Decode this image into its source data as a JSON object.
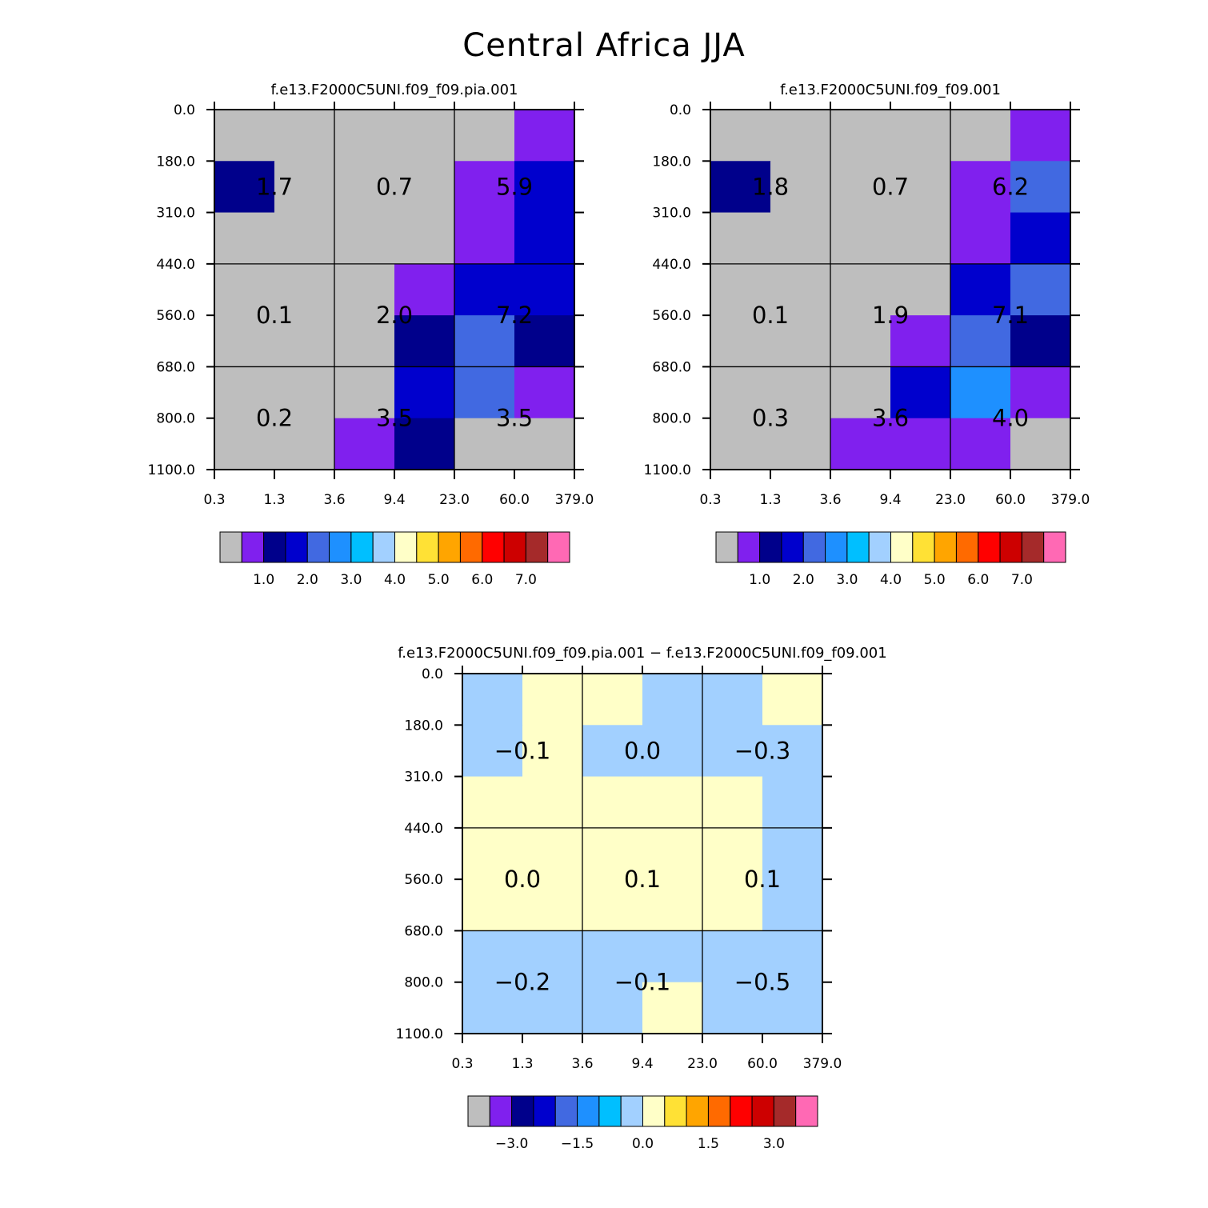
{
  "title": "Central Africa JJA",
  "colors": {
    "gray": "#bebebe",
    "blueviolet": "#8020ee",
    "navy": "#00008b",
    "mediumblue": "#0000cd",
    "royalblue": "#4169e1",
    "dodgerblue": "#1e90ff",
    "lightblue": "#a2d0ff",
    "lightyellow": "#ffffc8"
  },
  "chart_data": [
    {
      "type": "heatmap",
      "title": "f.e13.F2000C5UNI.f09_f09.pia.001",
      "x_ticks": [
        "0.3",
        "1.3",
        "3.6",
        "9.4",
        "23.0",
        "60.0",
        "379.0"
      ],
      "y_ticks": [
        "0.0",
        "180.0",
        "310.0",
        "440.0",
        "560.0",
        "680.0",
        "800.0",
        "1100.0"
      ],
      "cells": [
        [
          "gray",
          "gray",
          "gray",
          "gray",
          "gray",
          "blueviolet"
        ],
        [
          "navy",
          "gray",
          "gray",
          "gray",
          "blueviolet",
          "mediumblue"
        ],
        [
          "gray",
          "gray",
          "gray",
          "gray",
          "blueviolet",
          "mediumblue"
        ],
        [
          "gray",
          "gray",
          "gray",
          "blueviolet",
          "mediumblue",
          "mediumblue"
        ],
        [
          "gray",
          "gray",
          "gray",
          "navy",
          "royalblue",
          "navy"
        ],
        [
          "gray",
          "gray",
          "gray",
          "mediumblue",
          "royalblue",
          "blueviolet"
        ],
        [
          "gray",
          "gray",
          "blueviolet",
          "navy",
          "gray",
          "gray"
        ]
      ],
      "group_values": [
        [
          "1.7",
          "0.7",
          "5.9"
        ],
        [
          "0.1",
          "2.0",
          "7.2"
        ],
        [
          "0.2",
          "3.5",
          "3.5"
        ]
      ],
      "colorbar": {
        "colors": [
          "#bebebe",
          "#8020ee",
          "#00008b",
          "#0000cd",
          "#4169e1",
          "#1e90ff",
          "#00bfff",
          "#a2d0ff",
          "#ffffc8",
          "#ffe135",
          "#ffa500",
          "#ff6a00",
          "#ff0000",
          "#cd0000",
          "#a52a2a",
          "#ff69b4"
        ],
        "labels": [
          "1.0",
          "2.0",
          "3.0",
          "4.0",
          "5.0",
          "6.0",
          "7.0"
        ],
        "label_at_boundaries": [
          2,
          4,
          6,
          8,
          10,
          12,
          14
        ]
      }
    },
    {
      "type": "heatmap",
      "title": "f.e13.F2000C5UNI.f09_f09.001",
      "x_ticks": [
        "0.3",
        "1.3",
        "3.6",
        "9.4",
        "23.0",
        "60.0",
        "379.0"
      ],
      "y_ticks": [
        "0.0",
        "180.0",
        "310.0",
        "440.0",
        "560.0",
        "680.0",
        "800.0",
        "1100.0"
      ],
      "cells": [
        [
          "gray",
          "gray",
          "gray",
          "gray",
          "gray",
          "blueviolet"
        ],
        [
          "navy",
          "gray",
          "gray",
          "gray",
          "blueviolet",
          "royalblue"
        ],
        [
          "gray",
          "gray",
          "gray",
          "gray",
          "blueviolet",
          "mediumblue"
        ],
        [
          "gray",
          "gray",
          "gray",
          "gray",
          "mediumblue",
          "royalblue"
        ],
        [
          "gray",
          "gray",
          "gray",
          "blueviolet",
          "royalblue",
          "navy"
        ],
        [
          "gray",
          "gray",
          "gray",
          "mediumblue",
          "dodgerblue",
          "blueviolet"
        ],
        [
          "gray",
          "gray",
          "blueviolet",
          "blueviolet",
          "blueviolet",
          "gray"
        ]
      ],
      "group_values": [
        [
          "1.8",
          "0.7",
          "6.2"
        ],
        [
          "0.1",
          "1.9",
          "7.1"
        ],
        [
          "0.3",
          "3.6",
          "4.0"
        ]
      ],
      "colorbar": {
        "colors": [
          "#bebebe",
          "#8020ee",
          "#00008b",
          "#0000cd",
          "#4169e1",
          "#1e90ff",
          "#00bfff",
          "#a2d0ff",
          "#ffffc8",
          "#ffe135",
          "#ffa500",
          "#ff6a00",
          "#ff0000",
          "#cd0000",
          "#a52a2a",
          "#ff69b4"
        ],
        "labels": [
          "1.0",
          "2.0",
          "3.0",
          "4.0",
          "5.0",
          "6.0",
          "7.0"
        ],
        "label_at_boundaries": [
          2,
          4,
          6,
          8,
          10,
          12,
          14
        ]
      }
    },
    {
      "type": "heatmap",
      "title": "f.e13.F2000C5UNI.f09_f09.pia.001 − f.e13.F2000C5UNI.f09_f09.001",
      "x_ticks": [
        "0.3",
        "1.3",
        "3.6",
        "9.4",
        "23.0",
        "60.0",
        "379.0"
      ],
      "y_ticks": [
        "0.0",
        "180.0",
        "310.0",
        "440.0",
        "560.0",
        "680.0",
        "800.0",
        "1100.0"
      ],
      "cells": [
        [
          "lightblue",
          "lightyellow",
          "lightyellow",
          "lightblue",
          "lightblue",
          "lightyellow"
        ],
        [
          "lightblue",
          "lightyellow",
          "lightblue",
          "lightblue",
          "lightblue",
          "lightblue"
        ],
        [
          "lightyellow",
          "lightyellow",
          "lightyellow",
          "lightyellow",
          "lightyellow",
          "lightblue"
        ],
        [
          "lightyellow",
          "lightyellow",
          "lightyellow",
          "lightyellow",
          "lightyellow",
          "lightblue"
        ],
        [
          "lightyellow",
          "lightyellow",
          "lightyellow",
          "lightyellow",
          "lightyellow",
          "lightblue"
        ],
        [
          "lightblue",
          "lightblue",
          "lightblue",
          "lightblue",
          "lightblue",
          "lightblue"
        ],
        [
          "lightblue",
          "lightblue",
          "lightblue",
          "lightyellow",
          "lightblue",
          "lightblue"
        ]
      ],
      "group_values": [
        [
          "−0.1",
          "0.0",
          "−0.3"
        ],
        [
          "0.0",
          "0.1",
          "0.1"
        ],
        [
          "−0.2",
          "−0.1",
          "−0.5"
        ]
      ],
      "colorbar": {
        "colors": [
          "#bebebe",
          "#8020ee",
          "#00008b",
          "#0000cd",
          "#4169e1",
          "#1e90ff",
          "#00bfff",
          "#a2d0ff",
          "#ffffc8",
          "#ffe135",
          "#ffa500",
          "#ff6a00",
          "#ff0000",
          "#cd0000",
          "#a52a2a",
          "#ff69b4"
        ],
        "labels": [
          "−3.0",
          "−1.5",
          "0.0",
          "1.5",
          "3.0"
        ],
        "label_at_boundaries": [
          2,
          5,
          8,
          11,
          14
        ]
      }
    }
  ]
}
